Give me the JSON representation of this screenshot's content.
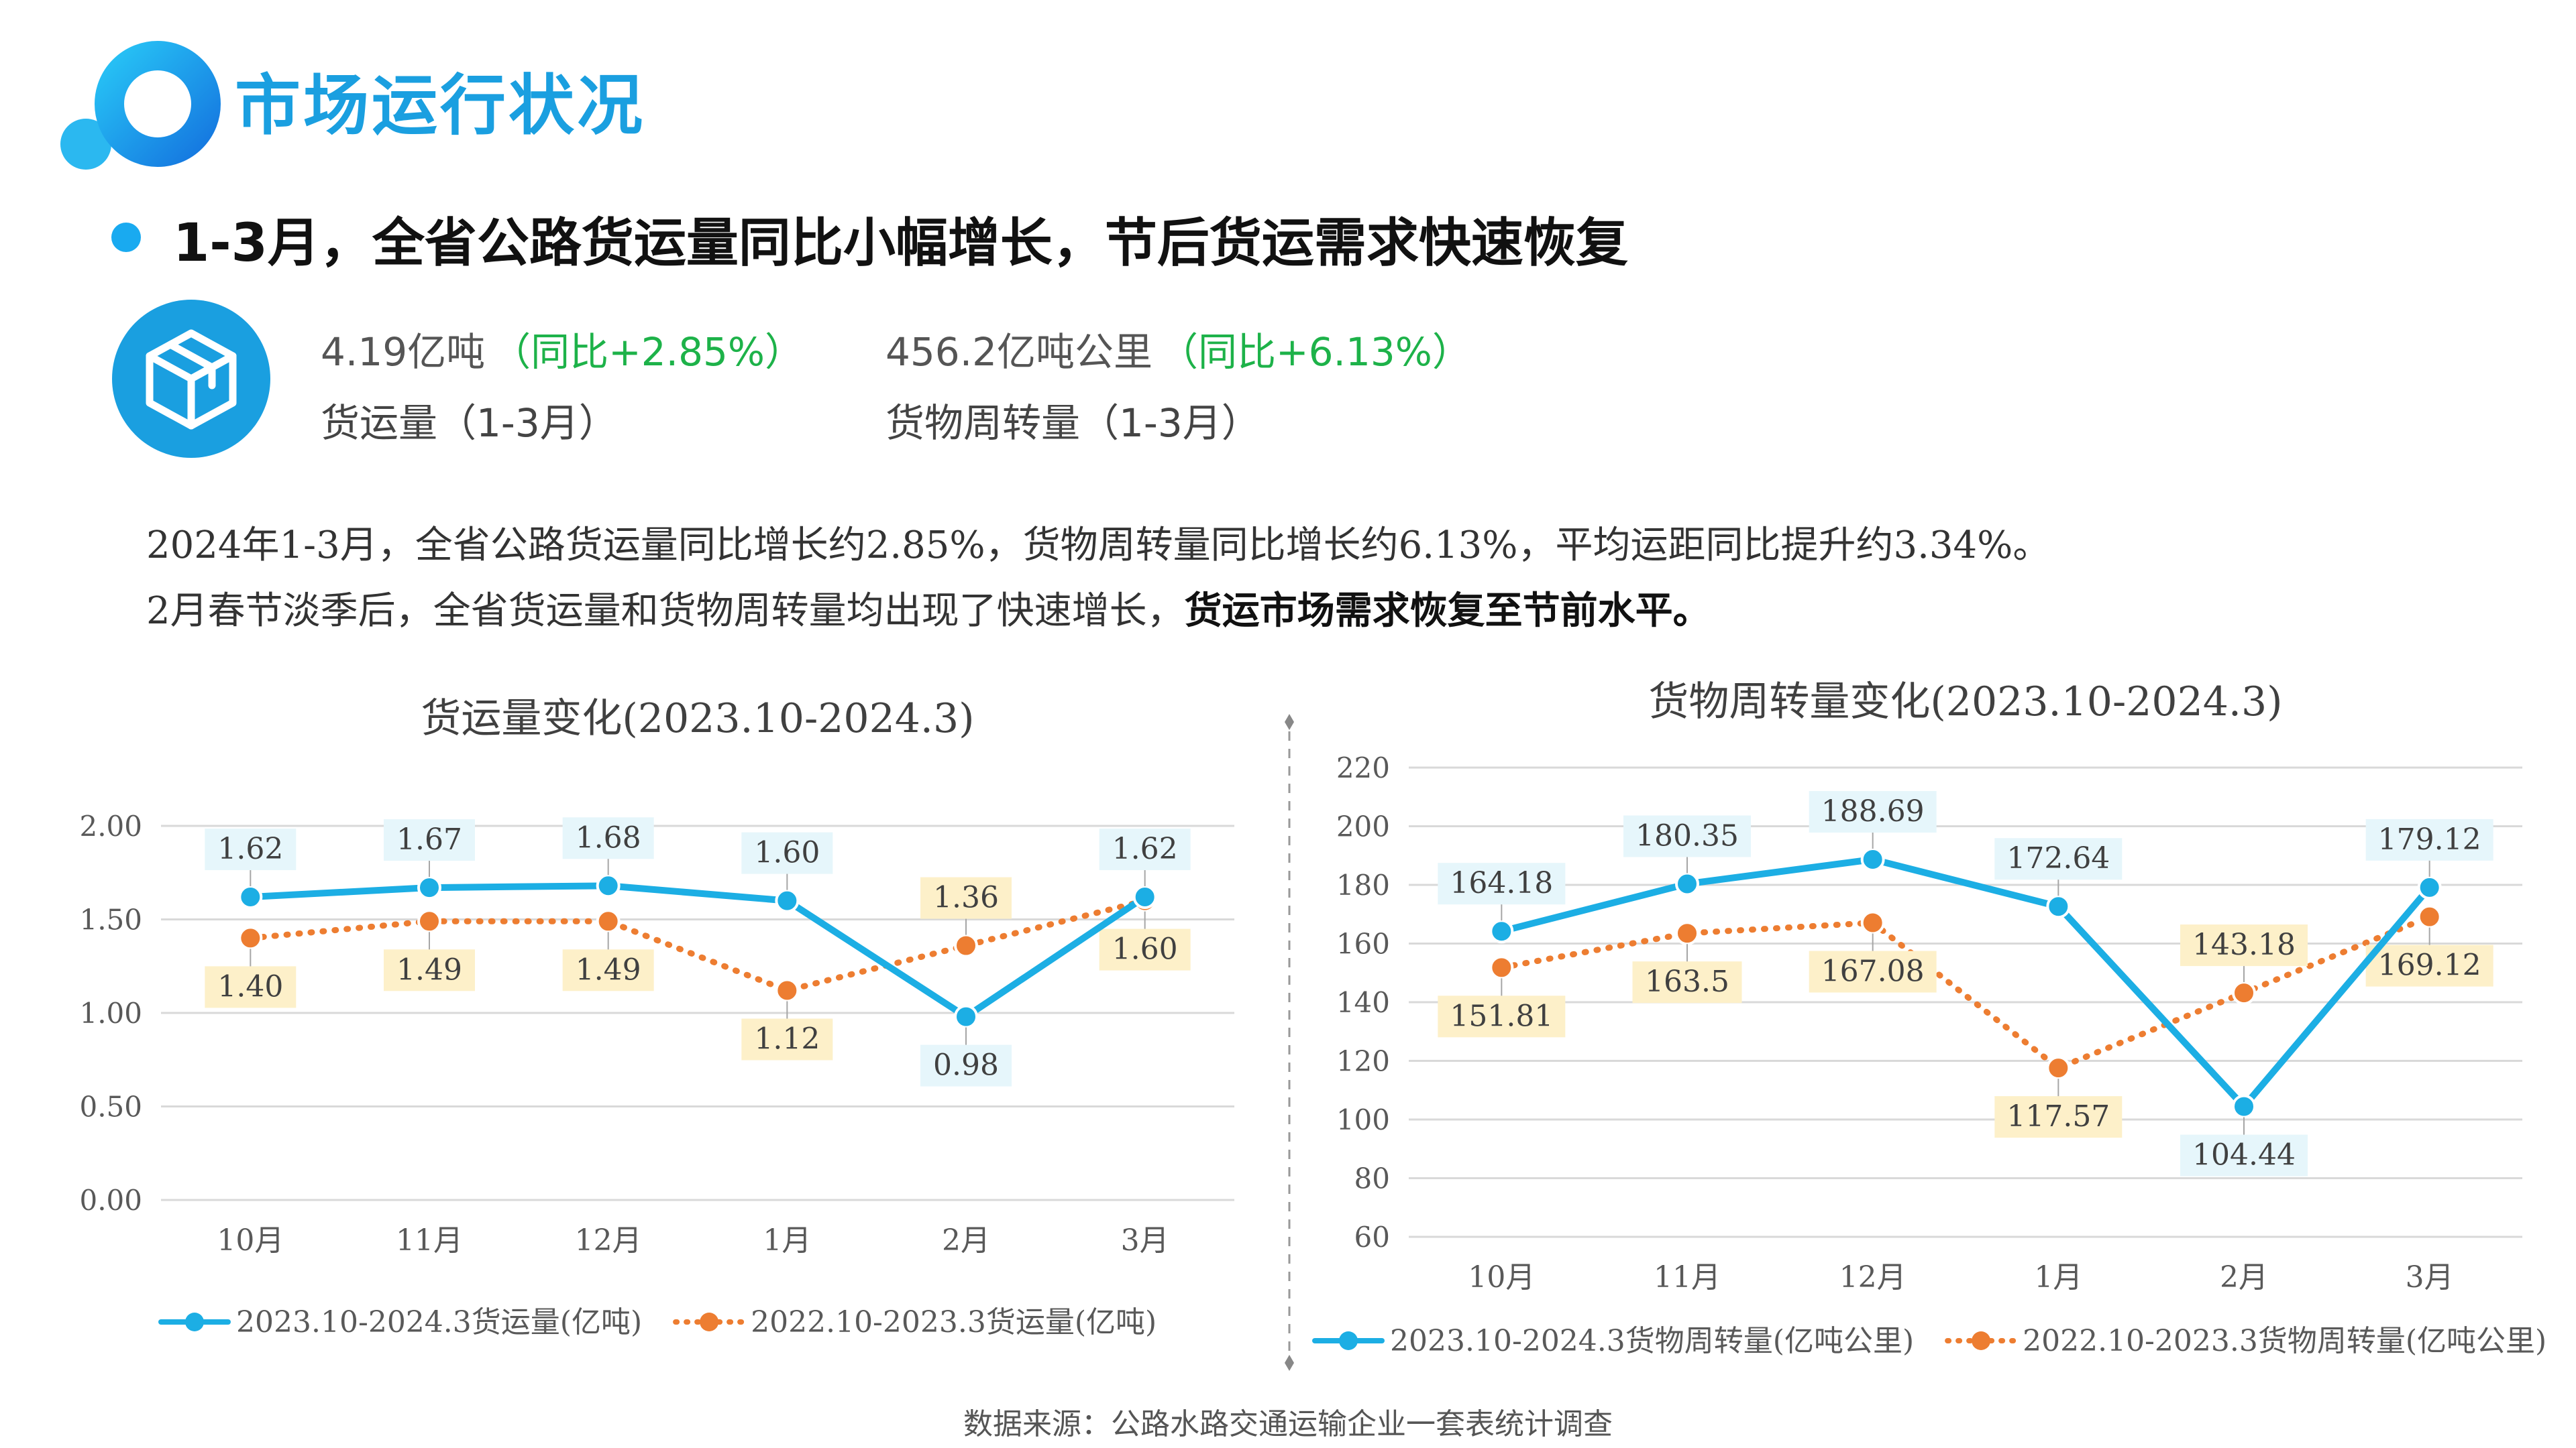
{
  "page": {
    "title": "市场运行状况",
    "headline": "1-3月，全省公路货运量同比小幅增长，节后货运需求快速恢复"
  },
  "kpis": [
    {
      "value": "4.19亿吨",
      "yoy": "（同比+2.85%）",
      "label": "货运量（1-3月）"
    },
    {
      "value": "456.2亿吨公里",
      "yoy": "（同比+6.13%）",
      "label": "货物周转量（1-3月）"
    }
  ],
  "description": {
    "line1": "2024年1-3月，全省公路货运量同比增长约2.85%，货物周转量同比增长约6.13%，平均运距同比提升约3.34%。",
    "line2_plain": "2月春节淡季后，全省货运量和货物周转量均出现了快速增长，",
    "line2_bold": "货运市场需求恢复至节前水平。"
  },
  "colors": {
    "accent": "#1a9fe0",
    "series_current": "#1caee4",
    "series_previous": "#ed7d31",
    "yoy_green": "#1db249",
    "label_current_bg": "#e6f6fb",
    "label_previous_bg": "#fdf0c9"
  },
  "icons": {
    "logo": "brand-ring-icon",
    "kpi": "package-box-icon",
    "headline_bullet": "bullet-dot-icon"
  },
  "chart_data": [
    {
      "type": "line",
      "title": "货运量变化(2023.10-2024.3)",
      "categories": [
        "10月",
        "11月",
        "12月",
        "1月",
        "2月",
        "3月"
      ],
      "ylim": [
        0,
        2
      ],
      "yticks": [
        "0.00",
        "0.50",
        "1.00",
        "1.50",
        "2.00"
      ],
      "grid": true,
      "legend": "bottom",
      "series": [
        {
          "name": "2023.10-2024.3货运量(亿吨)",
          "values": [
            1.62,
            1.67,
            1.68,
            1.6,
            0.98,
            1.62
          ],
          "labels": [
            "1.62",
            "1.67",
            "1.68",
            "1.60",
            "0.98",
            "1.62"
          ],
          "color": "#1caee4",
          "style": "solid"
        },
        {
          "name": "2022.10-2023.3货运量(亿吨)",
          "values": [
            1.4,
            1.49,
            1.49,
            1.12,
            1.36,
            1.6
          ],
          "labels": [
            "1.40",
            "1.49",
            "1.49",
            "1.12",
            "1.36",
            "1.60"
          ],
          "color": "#ed7d31",
          "style": "dotted"
        }
      ]
    },
    {
      "type": "line",
      "title": "货物周转量变化(2023.10-2024.3)",
      "categories": [
        "10月",
        "11月",
        "12月",
        "1月",
        "2月",
        "3月"
      ],
      "ylim": [
        60,
        220
      ],
      "yticks": [
        "60",
        "80",
        "100",
        "120",
        "140",
        "160",
        "180",
        "200",
        "220"
      ],
      "grid": true,
      "legend": "bottom",
      "series": [
        {
          "name": "2023.10-2024.3货物周转量(亿吨公里)",
          "values": [
            164.18,
            180.35,
            188.69,
            172.64,
            104.44,
            179.12
          ],
          "labels": [
            "164.18",
            "180.35",
            "188.69",
            "172.64",
            "104.44",
            "179.12"
          ],
          "color": "#1caee4",
          "style": "solid"
        },
        {
          "name": "2022.10-2023.3货物周转量(亿吨公里)",
          "values": [
            151.81,
            163.5,
            167.08,
            117.57,
            143.18,
            169.12
          ],
          "labels": [
            "151.81",
            "163.5",
            "167.08",
            "117.57",
            "143.18",
            "169.12"
          ],
          "color": "#ed7d31",
          "style": "dotted"
        }
      ]
    }
  ],
  "source": "数据来源：公路水路交通运输企业一套表统计调查"
}
